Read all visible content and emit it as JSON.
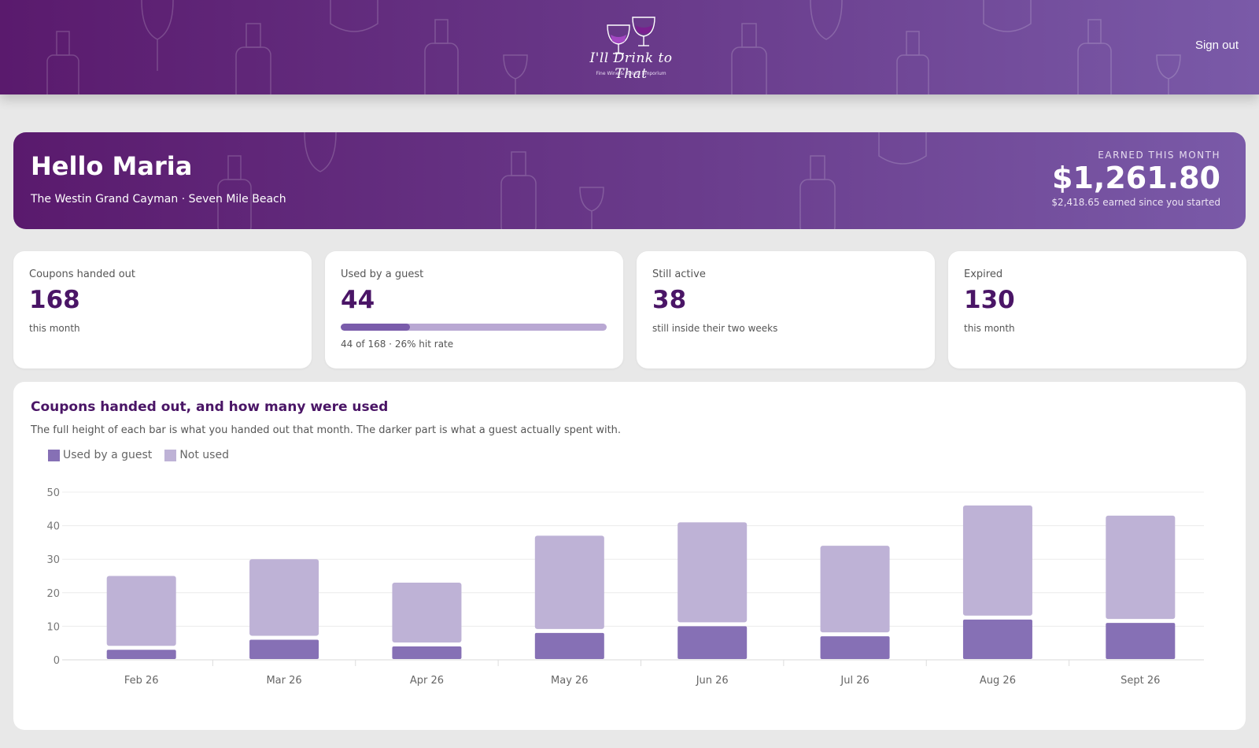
{
  "header": {
    "logo_text": "I'll Drink to That",
    "logo_tagline": "Fine Wine & Spirits Emporium",
    "signout_label": "Sign out"
  },
  "hero": {
    "greeting": "Hello Maria",
    "location": "The Westin Grand Cayman · Seven Mile Beach",
    "earned_label": "EARNED THIS MONTH",
    "earned_amount": "$1,261.80",
    "earned_total": "$2,418.65 earned since you started"
  },
  "stats": [
    {
      "label": "Coupons handed out",
      "value": "168",
      "note": "this month"
    },
    {
      "label": "Used by a guest",
      "value": "44",
      "progress": 0.26,
      "note": "44 of 168 · 26% hit rate"
    },
    {
      "label": "Still active",
      "value": "38",
      "note": "still inside their two weeks"
    },
    {
      "label": "Expired",
      "value": "130",
      "note": "this month"
    }
  ],
  "colors": {
    "used": "#8670b5",
    "unused": "#beb2d6",
    "accent": "#4a1566"
  },
  "chart_data": {
    "type": "bar",
    "title": "Coupons handed out, and how many were used",
    "subtitle": "The full height of each bar is what you handed out that month. The darker part is what a guest actually spent with.",
    "categories": [
      "Feb 26",
      "Mar 26",
      "Apr 26",
      "May 26",
      "Jun 26",
      "Jul 26",
      "Aug 26",
      "Sept 26"
    ],
    "series": [
      {
        "name": "Used by a guest",
        "values": [
          3,
          6,
          4,
          8,
          10,
          7,
          12,
          11
        ]
      },
      {
        "name": "Not used",
        "values": [
          22,
          24,
          19,
          29,
          31,
          27,
          34,
          32
        ]
      }
    ],
    "stacked": true,
    "ylim": [
      0,
      50
    ],
    "yticks": [
      0,
      10,
      20,
      30,
      40,
      50
    ],
    "grid": true,
    "legend": "top-left"
  }
}
